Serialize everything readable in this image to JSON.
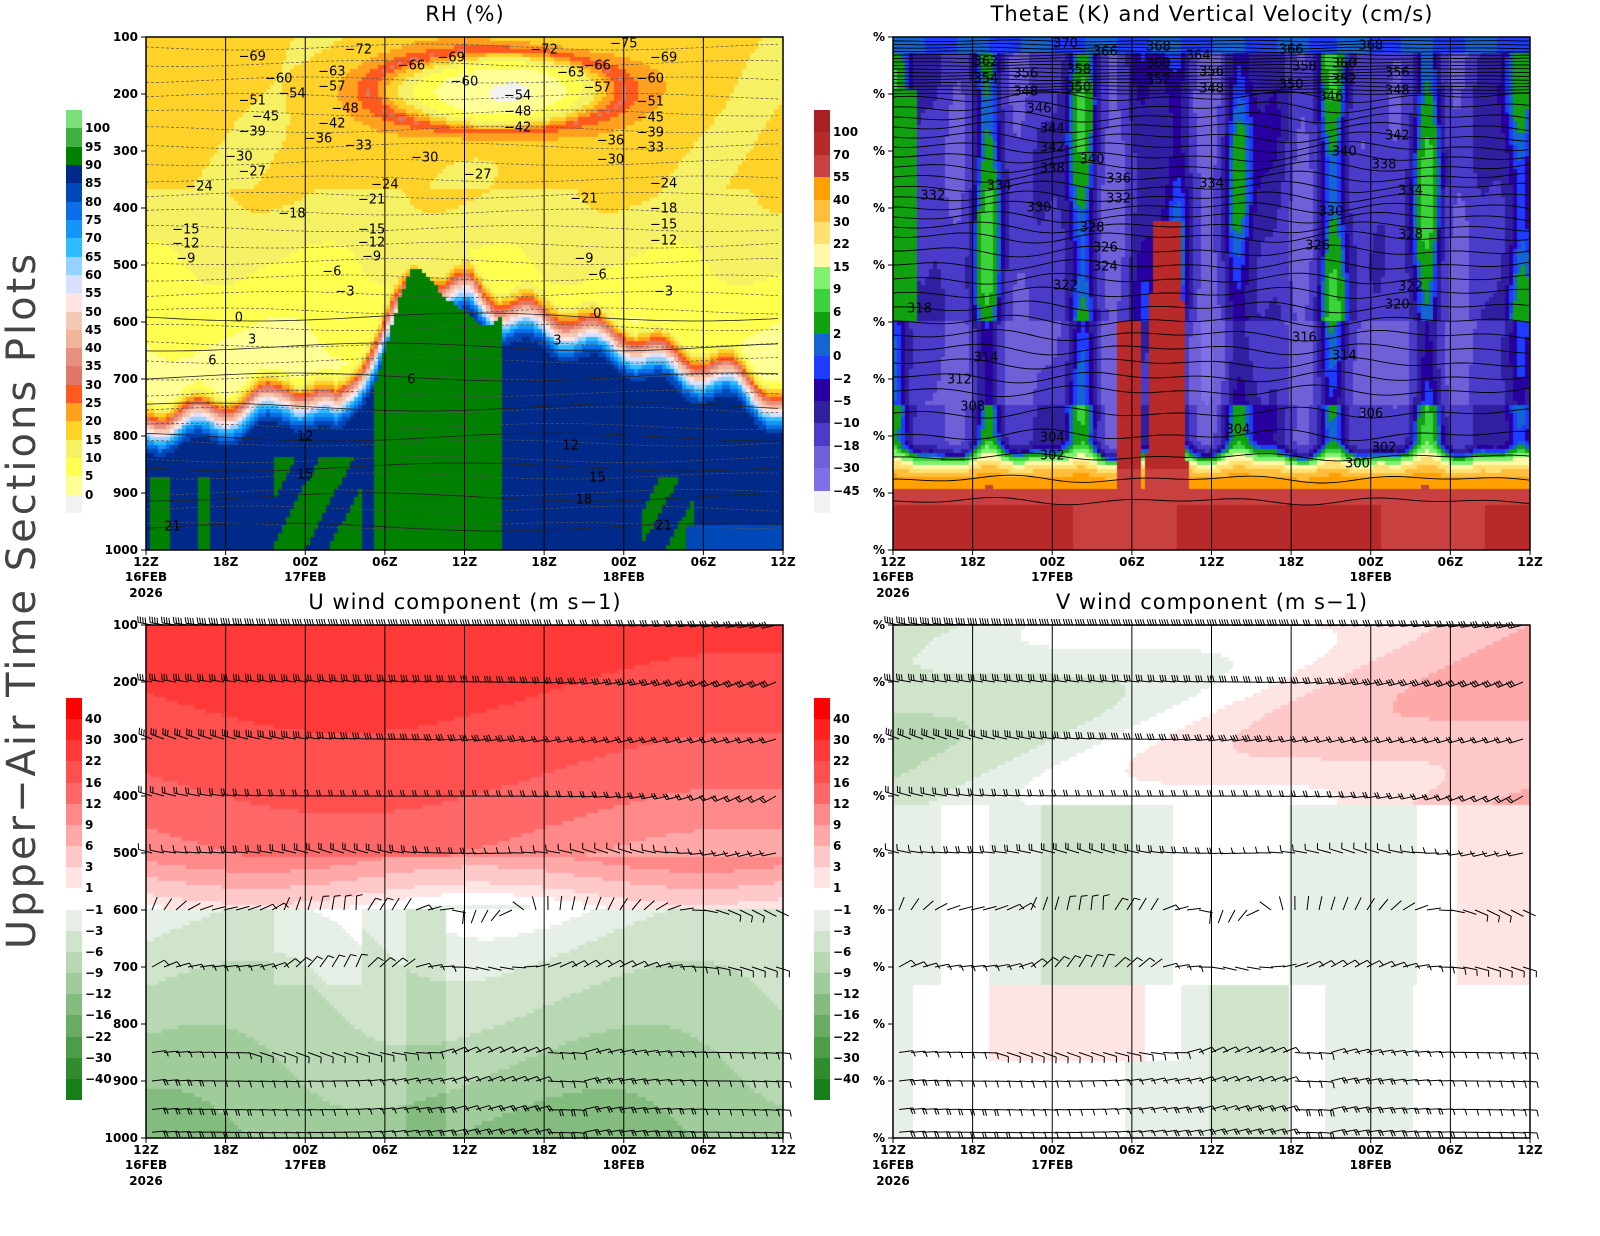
{
  "side_title": "Upper−Air Time Sections Plots",
  "x_axis": {
    "ticks": [
      "12Z",
      "18Z",
      "00Z",
      "06Z",
      "12Z",
      "18Z",
      "00Z",
      "06Z",
      "12Z"
    ],
    "date_labels": [
      {
        "tick": 0,
        "text": "16FEB"
      },
      {
        "tick": 2,
        "text": "17FEB"
      },
      {
        "tick": 6,
        "text": "18FEB"
      }
    ],
    "year_label": "2026"
  },
  "chart_data": [
    {
      "id": "rh",
      "type": "heatmap",
      "title": "RH (%)",
      "xlim": [
        "16/12Z",
        "18/12Z"
      ],
      "ylim": [
        1000,
        100
      ],
      "y_ticks": [
        "100",
        "200",
        "300",
        "400",
        "500",
        "600",
        "700",
        "800",
        "900",
        "1000"
      ],
      "colorbar": {
        "labels": [
          "100",
          "95",
          "90",
          "85",
          "80",
          "75",
          "70",
          "65",
          "60",
          "55",
          "50",
          "45",
          "40",
          "35",
          "30",
          "25",
          "20",
          "15",
          "10",
          "5",
          "0"
        ],
        "values": [
          100,
          95,
          90,
          85,
          80,
          75,
          70,
          65,
          60,
          55,
          50,
          45,
          40,
          35,
          30,
          25,
          20,
          15,
          10,
          5,
          0
        ],
        "colors": [
          "#7ae07a",
          "#40b040",
          "#008000",
          "#002a8a",
          "#0048b8",
          "#0a6ee8",
          "#1496f8",
          "#30bcff",
          "#96d2ff",
          "#d8e0ff",
          "#ffe4e4",
          "#f5c8b4",
          "#f0b498",
          "#e89080",
          "#e07868",
          "#ff5a1e",
          "#ffa01e",
          "#ffd22a",
          "#f5f064",
          "#ffff50",
          "#ffff96",
          "#f2f2f2"
        ]
      },
      "contour_labels": [
        [
          "-69",
          "16/20Z",
          135
        ],
        [
          "-72",
          "17/04Z",
          123
        ],
        [
          "-69",
          "17/11Z",
          137
        ],
        [
          "-72",
          "17/18Z",
          123
        ],
        [
          "-75",
          "18/00Z",
          112
        ],
        [
          "-69",
          "18/03Z",
          137
        ],
        [
          "-66",
          "17/08Z",
          151
        ],
        [
          "-60",
          "16/22Z",
          174
        ],
        [
          "-63",
          "17/02Z",
          161
        ],
        [
          "-57",
          "17/02Z",
          188
        ],
        [
          "-60",
          "17/12Z",
          179
        ],
        [
          "-63",
          "17/20Z",
          163
        ],
        [
          "-66",
          "17/22Z",
          151
        ],
        [
          "-57",
          "17/22Z",
          189
        ],
        [
          "-60",
          "18/02Z",
          174
        ],
        [
          "-54",
          "16/23Z",
          200
        ],
        [
          "-51",
          "16/20Z",
          212
        ],
        [
          "-48",
          "17/03Z",
          226
        ],
        [
          "-54",
          "17/16Z",
          204
        ],
        [
          "-48",
          "17/16Z",
          232
        ],
        [
          "-42",
          "17/16Z",
          260
        ],
        [
          "-51",
          "18/02Z",
          214
        ],
        [
          "-45",
          "16/21Z",
          240
        ],
        [
          "-42",
          "17/02Z",
          253
        ],
        [
          "-45",
          "18/02Z",
          242
        ],
        [
          "-39",
          "16/20Z",
          267
        ],
        [
          "-36",
          "17/01Z",
          279
        ],
        [
          "-33",
          "17/04Z",
          291
        ],
        [
          "-39",
          "18/02Z",
          268
        ],
        [
          "-36",
          "17/23Z",
          282
        ],
        [
          "-33",
          "18/02Z",
          295
        ],
        [
          "-30",
          "16/19Z",
          310
        ],
        [
          "-27",
          "16/20Z",
          337
        ],
        [
          "-30",
          "17/09Z",
          312
        ],
        [
          "-30",
          "17/23Z",
          316
        ],
        [
          "-27",
          "17/13Z",
          342
        ],
        [
          "-24",
          "16/16Z",
          363
        ],
        [
          "-24",
          "17/06Z",
          360
        ],
        [
          "-21",
          "17/05Z",
          386
        ],
        [
          "-21",
          "17/21Z",
          384
        ],
        [
          "-24",
          "18/03Z",
          358
        ],
        [
          "-18",
          "16/23Z",
          410
        ],
        [
          "-18",
          "18/03Z",
          402
        ],
        [
          "-15",
          "16/15Z",
          439
        ],
        [
          "-15",
          "17/05Z",
          439
        ],
        [
          "-15",
          "18/03Z",
          430
        ],
        [
          "-12",
          "16/15Z",
          463
        ],
        [
          "-12",
          "17/05Z",
          461
        ],
        [
          "-12",
          "18/03Z",
          458
        ],
        [
          "-9",
          "16/15Z",
          489
        ],
        [
          "-9",
          "17/05Z",
          486
        ],
        [
          "-9",
          "17/21Z",
          489
        ],
        [
          "-6",
          "17/02Z",
          512
        ],
        [
          "-6",
          "17/22Z",
          518
        ],
        [
          "-3",
          "17/03Z",
          547
        ],
        [
          "-3",
          "18/03Z",
          547
        ],
        [
          "0",
          "16/19Z",
          593
        ],
        [
          "0",
          "17/22Z",
          586
        ],
        [
          "3",
          "16/20Z",
          632
        ],
        [
          "3",
          "17/19Z",
          633
        ],
        [
          "6",
          "16/17Z",
          668
        ],
        [
          "6",
          "17/08Z",
          702
        ],
        [
          "12",
          "17/00Z",
          802
        ],
        [
          "12",
          "17/20Z",
          818
        ],
        [
          "15",
          "17/00Z",
          868
        ],
        [
          "15",
          "17/22Z",
          874
        ],
        [
          "18",
          "17/21Z",
          912
        ],
        [
          "21",
          "16/14Z",
          960
        ],
        [
          "21",
          "18/03Z",
          958
        ]
      ]
    },
    {
      "id": "thetae",
      "type": "heatmap",
      "title": "ThetaE (K) and Vertical Velocity (cm/s)",
      "xlim": [
        "16/12Z",
        "18/12Z"
      ],
      "ylim": [
        1000,
        100
      ],
      "y_ticks": [
        "%",
        "%",
        "%",
        "%",
        "%",
        "%",
        "%",
        "%",
        "%",
        "%"
      ],
      "colorbar": {
        "labels": [
          "100",
          "70",
          "55",
          "40",
          "30",
          "22",
          "15",
          "9",
          "6",
          "2",
          "0",
          "−2",
          "−5",
          "−10",
          "−18",
          "−30",
          "−45"
        ],
        "values": [
          100,
          70,
          55,
          40,
          30,
          22,
          15,
          9,
          6,
          2,
          0,
          -2,
          -5,
          -10,
          -18,
          -30,
          -45
        ],
        "colors": [
          "#a82024",
          "#b82a2a",
          "#c84040",
          "#ffa000",
          "#ffbe3c",
          "#ffe070",
          "#fff8a8",
          "#80f070",
          "#3cd23c",
          "#10a010",
          "#1464d2",
          "#1e3cff",
          "#2800a0",
          "#3020a0",
          "#4a3cc8",
          "#7060d8",
          "#8070e8",
          "#f2f2f2"
        ]
      },
      "contour_labels": [
        [
          "370",
          "17/01Z",
          112
        ],
        [
          "366",
          "17/04Z",
          126
        ],
        [
          "368",
          "17/08Z",
          117
        ],
        [
          "364",
          "17/11Z",
          133
        ],
        [
          "366",
          "17/18Z",
          123
        ],
        [
          "368",
          "18/00Z",
          116
        ],
        [
          "362",
          "16/19Z",
          144
        ],
        [
          "356",
          "16/22Z",
          165
        ],
        [
          "358",
          "17/02Z",
          158
        ],
        [
          "360",
          "17/08Z",
          147
        ],
        [
          "356",
          "17/12Z",
          161
        ],
        [
          "358",
          "17/19Z",
          153
        ],
        [
          "360",
          "17/22Z",
          147
        ],
        [
          "356",
          "18/02Z",
          163
        ],
        [
          "354",
          "16/19Z",
          174
        ],
        [
          "348",
          "16/22Z",
          197
        ],
        [
          "350",
          "17/02Z",
          189
        ],
        [
          "352",
          "17/08Z",
          175
        ],
        [
          "348",
          "17/12Z",
          191
        ],
        [
          "350",
          "17/18Z",
          184
        ],
        [
          "346",
          "17/21Z",
          205
        ],
        [
          "352",
          "17/22Z",
          175
        ],
        [
          "348",
          "18/02Z",
          195
        ],
        [
          "346",
          "16/23Z",
          226
        ],
        [
          "344",
          "17/00Z",
          261
        ],
        [
          "342",
          "17/00Z",
          294
        ],
        [
          "340",
          "17/03Z",
          315
        ],
        [
          "338",
          "17/00Z",
          331
        ],
        [
          "342",
          "18/02Z",
          274
        ],
        [
          "340",
          "17/22Z",
          302
        ],
        [
          "338",
          "18/01Z",
          325
        ],
        [
          "336",
          "17/05Z",
          349
        ],
        [
          "332",
          "17/05Z",
          384
        ],
        [
          "334",
          "17/12Z",
          358
        ],
        [
          "334",
          "16/20Z",
          361
        ],
        [
          "332",
          "16/15Z",
          379
        ],
        [
          "330",
          "16/23Z",
          400
        ],
        [
          "330",
          "17/21Z",
          407
        ],
        [
          "334",
          "18/03Z",
          370
        ],
        [
          "328",
          "17/03Z",
          435
        ],
        [
          "326",
          "17/04Z",
          470
        ],
        [
          "324",
          "17/04Z",
          503
        ],
        [
          "326",
          "17/20Z",
          467
        ],
        [
          "328",
          "18/03Z",
          447
        ],
        [
          "322",
          "17/01Z",
          537
        ],
        [
          "322",
          "18/03Z",
          538
        ],
        [
          "320",
          "18/02Z",
          570
        ],
        [
          "318",
          "16/14Z",
          577
        ],
        [
          "316",
          "17/19Z",
          628
        ],
        [
          "314",
          "16/19Z",
          663
        ],
        [
          "314",
          "17/22Z",
          659
        ],
        [
          "312",
          "16/17Z",
          702
        ],
        [
          "308",
          "16/18Z",
          749
        ],
        [
          "306",
          "18/00Z",
          761
        ],
        [
          "304",
          "17/00Z",
          804
        ],
        [
          "304",
          "17/14Z",
          790
        ],
        [
          "302",
          "17/00Z",
          835
        ],
        [
          "302",
          "18/01Z",
          821
        ],
        [
          "300",
          "17/23Z",
          849
        ]
      ]
    },
    {
      "id": "uwind",
      "type": "heatmap",
      "title": "U wind component (m s−1)",
      "xlim": [
        "16/12Z",
        "18/12Z"
      ],
      "ylim": [
        1000,
        100
      ],
      "y_ticks": [
        "100",
        "200",
        "300",
        "400",
        "500",
        "600",
        "700",
        "800",
        "900",
        "1000"
      ],
      "wind_barbs": true,
      "colorbar": {
        "labels": [
          "40",
          "30",
          "22",
          "16",
          "12",
          "9",
          "6",
          "3",
          "1",
          "−1",
          "−3",
          "−6",
          "−9",
          "−12",
          "−16",
          "−22",
          "−30",
          "−40"
        ],
        "values": [
          40,
          30,
          22,
          16,
          12,
          9,
          6,
          3,
          1,
          -1,
          -3,
          -6,
          -9,
          -12,
          -16,
          -22,
          -30,
          -40
        ],
        "colors": [
          "#ff0000",
          "#ff2020",
          "#ff3838",
          "#ff5050",
          "#ff6868",
          "#ff8888",
          "#ffa8a8",
          "#ffc8c8",
          "#ffe4e4",
          "#ffffff",
          "#e6f0e6",
          "#d0e4cc",
          "#b8d8b4",
          "#a0cc9c",
          "#84bc80",
          "#68ac64",
          "#4c9c48",
          "#308c2c",
          "#188018"
        ]
      },
      "contour_labels": []
    },
    {
      "id": "vwind",
      "type": "heatmap",
      "title": "V wind component (m s−1)",
      "xlim": [
        "16/12Z",
        "18/12Z"
      ],
      "ylim": [
        1000,
        100
      ],
      "y_ticks": [
        "%",
        "%",
        "%",
        "%",
        "%",
        "%",
        "%",
        "%",
        "%",
        "%"
      ],
      "wind_barbs": true,
      "colorbar": {
        "labels": [
          "40",
          "30",
          "22",
          "16",
          "12",
          "9",
          "6",
          "3",
          "1",
          "−1",
          "−3",
          "−6",
          "−9",
          "−12",
          "−16",
          "−22",
          "−30",
          "−40"
        ],
        "values": [
          40,
          30,
          22,
          16,
          12,
          9,
          6,
          3,
          1,
          -1,
          -3,
          -6,
          -9,
          -12,
          -16,
          -22,
          -30,
          -40
        ],
        "colors": [
          "#ff0000",
          "#ff2020",
          "#ff3838",
          "#ff5050",
          "#ff6868",
          "#ff8888",
          "#ffa8a8",
          "#ffc8c8",
          "#ffe4e4",
          "#ffffff",
          "#e6f0e6",
          "#d0e4cc",
          "#b8d8b4",
          "#a0cc9c",
          "#84bc80",
          "#68ac64",
          "#4c9c48",
          "#308c2c",
          "#188018"
        ]
      },
      "contour_labels": []
    }
  ]
}
